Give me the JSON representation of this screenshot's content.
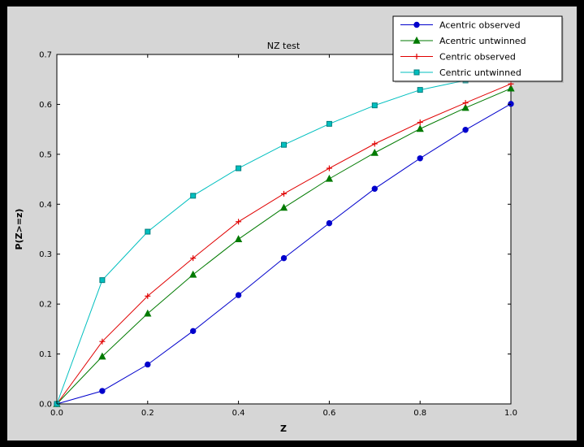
{
  "chart_data": {
    "type": "line",
    "title": "NZ test",
    "xlabel": "Z",
    "ylabel": "P(Z>=z)",
    "xlim": [
      0.0,
      1.0
    ],
    "ylim": [
      0.0,
      0.7
    ],
    "xticks": [
      0.0,
      0.2,
      0.4,
      0.6,
      0.8,
      1.0
    ],
    "yticks": [
      0.0,
      0.1,
      0.2,
      0.3,
      0.4,
      0.5,
      0.6,
      0.7
    ],
    "grid": false,
    "legend_position": "upper right",
    "x": [
      0.0,
      0.1,
      0.2,
      0.3,
      0.4,
      0.5,
      0.6,
      0.7,
      0.8,
      0.9,
      1.0
    ],
    "series": [
      {
        "name": "Acentric observed",
        "color": "#0000cc",
        "marker": "circle",
        "values": [
          0.0,
          0.026,
          0.079,
          0.146,
          0.218,
          0.292,
          0.362,
          0.431,
          0.492,
          0.549,
          0.601
        ]
      },
      {
        "name": "Acentric untwinned",
        "color": "#007a00",
        "marker": "triangle",
        "values": [
          0.0,
          0.095,
          0.181,
          0.259,
          0.33,
          0.393,
          0.451,
          0.503,
          0.551,
          0.593,
          0.632
        ]
      },
      {
        "name": "Centric observed",
        "color": "#e00000",
        "marker": "plus",
        "values": [
          0.0,
          0.125,
          0.216,
          0.292,
          0.365,
          0.421,
          0.472,
          0.521,
          0.564,
          0.603,
          0.641
        ]
      },
      {
        "name": "Centric untwinned",
        "color": "#00bfbf",
        "marker": "square",
        "marker_edge": "#007d7d",
        "values": [
          0.0,
          0.248,
          0.345,
          0.417,
          0.472,
          0.519,
          0.561,
          0.598,
          0.629,
          0.648,
          0.658
        ]
      }
    ],
    "colors": {
      "figure_background": "#d6d6d6",
      "axes_background": "#ffffff",
      "page_background": "#000000"
    }
  }
}
